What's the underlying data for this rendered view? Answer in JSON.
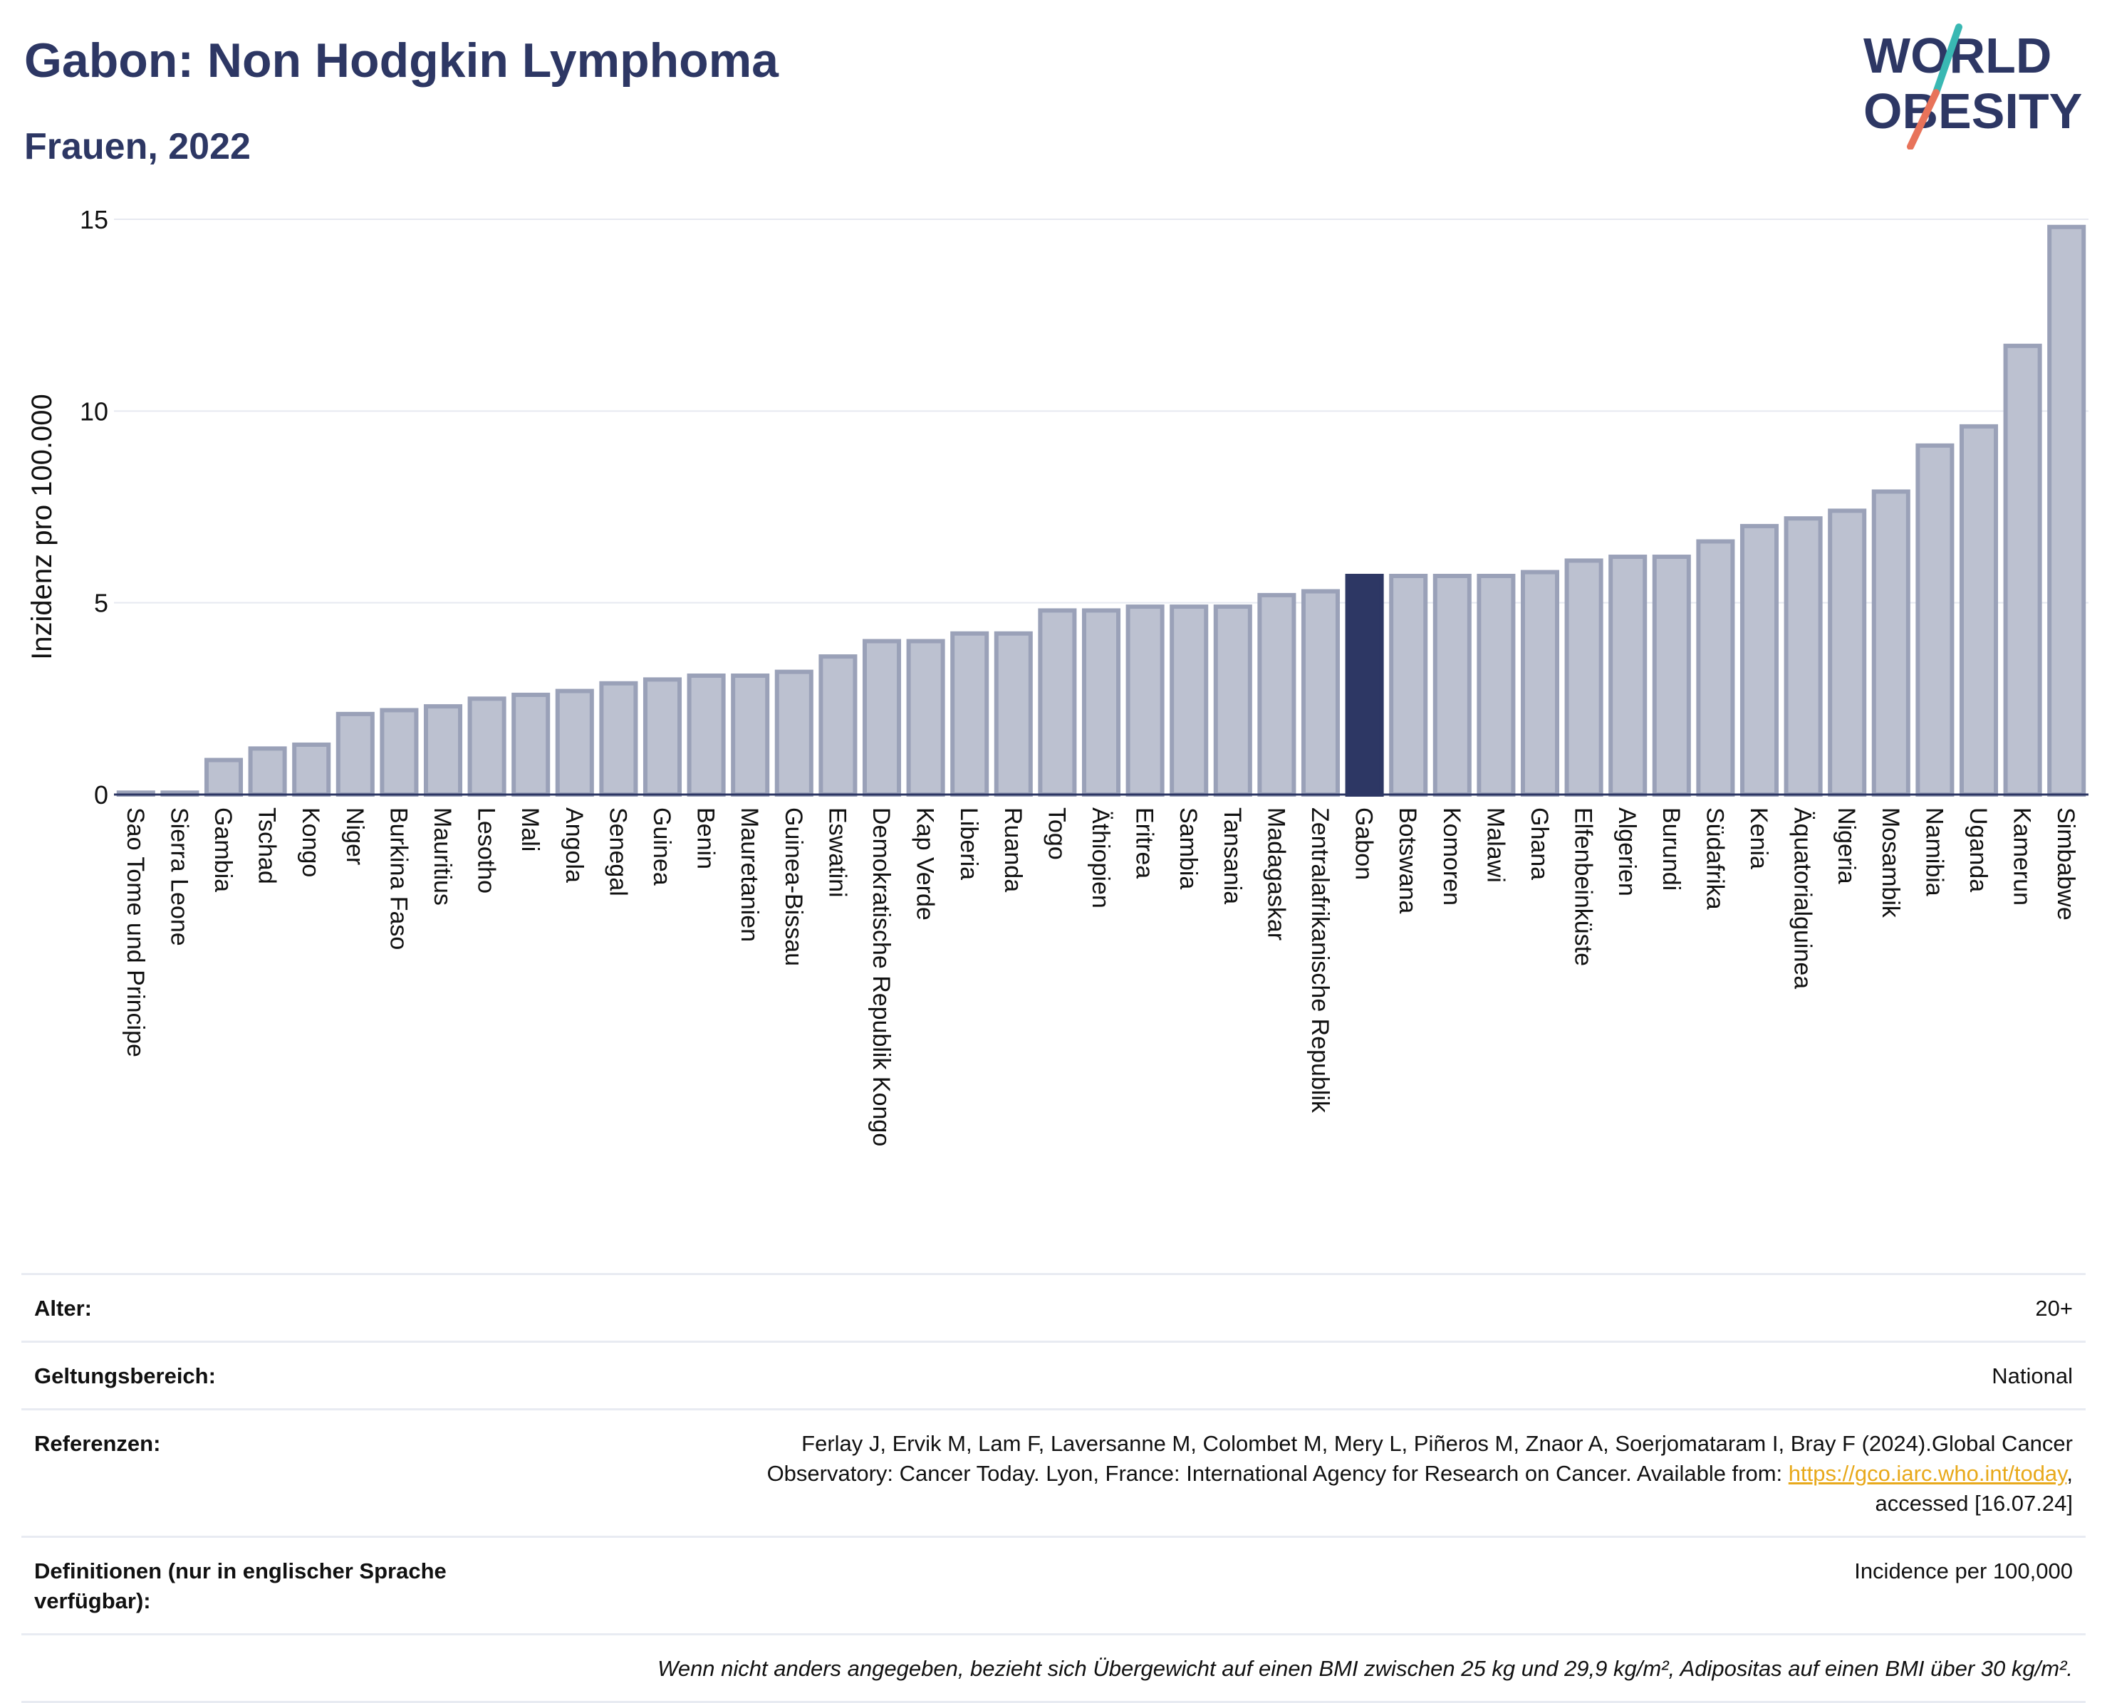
{
  "header": {
    "title": "Gabon: Non Hodgkin Lymphoma",
    "subtitle": "Frauen, 2022"
  },
  "logo": {
    "line1": "WORLD",
    "line2": "OBESITY",
    "slash_colors": [
      "#39b8b3",
      "#e8735a"
    ]
  },
  "chart_data": {
    "type": "bar",
    "ylabel": "Inzidenz pro 100.000",
    "xlabel": "",
    "ylim": [
      0,
      15
    ],
    "yticks": [
      0,
      5,
      10,
      15
    ],
    "grid": true,
    "legend": "none",
    "highlight": "Gabon",
    "colors": {
      "bar": "#bcc1d0",
      "bar_edge": "#9aa1b8",
      "highlight": "#2d3764",
      "axis": "#2d3764",
      "grid": "#e6e9f0"
    },
    "categories": [
      "Sao Tome und Principe",
      "Sierra Leone",
      "Gambia",
      "Tschad",
      "Kongo",
      "Niger",
      "Burkina Faso",
      "Mauritius",
      "Lesotho",
      "Mali",
      "Angola",
      "Senegal",
      "Guinea",
      "Benin",
      "Mauretanien",
      "Guinea-Bissau",
      "Eswatini",
      "Demokratische Republik Kongo",
      "Kap Verde",
      "Liberia",
      "Ruanda",
      "Togo",
      "Äthiopien",
      "Eritrea",
      "Sambia",
      "Tansania",
      "Madagaskar",
      "Zentralafrikanische Republik",
      "Gabon",
      "Botswana",
      "Komoren",
      "Malawi",
      "Ghana",
      "Elfenbeinküste",
      "Algerien",
      "Burundi",
      "Südafrika",
      "Kenia",
      "Äquatorialguinea",
      "Nigeria",
      "Mosambik",
      "Namibia",
      "Uganda",
      "Kamerun",
      "Simbabwe"
    ],
    "values": [
      0.05,
      0.05,
      0.9,
      1.2,
      1.3,
      2.1,
      2.2,
      2.3,
      2.5,
      2.6,
      2.7,
      2.9,
      3.0,
      3.1,
      3.1,
      3.2,
      3.6,
      4.0,
      4.0,
      4.2,
      4.2,
      4.8,
      4.8,
      4.9,
      4.9,
      4.9,
      5.2,
      5.3,
      5.7,
      5.7,
      5.7,
      5.7,
      5.8,
      6.1,
      6.2,
      6.2,
      6.6,
      7.0,
      7.2,
      7.4,
      7.9,
      9.1,
      9.6,
      11.7,
      14.8
    ]
  },
  "info": {
    "rows": [
      {
        "label": "Alter:",
        "value": "20+"
      },
      {
        "label": "Geltungsbereich:",
        "value": "National"
      },
      {
        "label": "Referenzen:",
        "value_part1": "Ferlay J, Ervik M, Lam F, Laversanne M, Colombet M, Mery L, Piñeros M, Znaor A, Soerjomataram I, Bray F (2024).Global Cancer",
        "value_part2": "Observatory: Cancer Today. Lyon, France: International Agency for Research on Cancer. Available from: ",
        "link": "https://gco.iarc.who.int/today",
        "value_part3": ",",
        "value_part4": "accessed [16.07.24]"
      },
      {
        "label": "Definitionen (nur in englischer Sprache verfügbar):",
        "value": "Incidence per 100,000"
      }
    ],
    "note": "Wenn nicht anders angegeben, bezieht sich Übergewicht auf einen BMI zwischen 25 kg und 29,9 kg/m², Adipositas auf einen BMI über 30 kg/m²."
  }
}
